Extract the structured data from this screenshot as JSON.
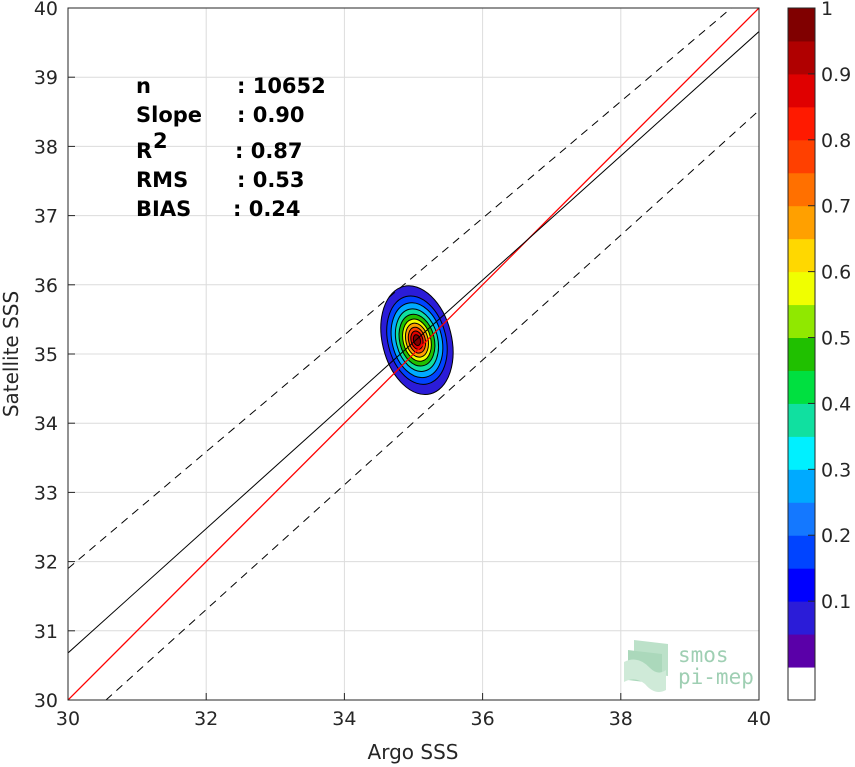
{
  "chart_data": {
    "type": "scatter",
    "subtype": "density-contour",
    "xlabel": "Argo SSS",
    "ylabel": "Satellite SSS",
    "xlim": [
      30,
      40
    ],
    "ylim": [
      30,
      40
    ],
    "xticks": [
      "30",
      "32",
      "34",
      "36",
      "38",
      "40"
    ],
    "yticks": [
      "30",
      "31",
      "32",
      "33",
      "34",
      "35",
      "36",
      "37",
      "38",
      "39",
      "40"
    ],
    "grid": true,
    "stats": [
      {
        "name": "n",
        "value": ": 10652"
      },
      {
        "name": "Slope",
        "value": ": 0.90"
      },
      {
        "name": "R",
        "sup": "2",
        "value": ": 0.87"
      },
      {
        "name": "RMS",
        "value": ": 0.53"
      },
      {
        "name": "BIAS",
        "value": ": 0.24"
      }
    ],
    "lines": {
      "identity": {
        "slope": 1.0,
        "intercept": 0.0,
        "color": "#ff0000"
      },
      "fit": {
        "slope": 0.9,
        "intercept_at_x30": 30.68,
        "value_at_x40": 39.66,
        "color": "#000000"
      },
      "upper_bound": {
        "x0": 30.0,
        "y0": 31.9,
        "x1": 39.6,
        "y1": 40.0,
        "style": "dashed"
      },
      "lower_bound": {
        "x0": 30.55,
        "y0": 30.0,
        "x1": 40.0,
        "y1": 38.52,
        "style": "dashed"
      }
    },
    "density_peak": {
      "x": 35.05,
      "y": 35.2
    },
    "density_contours": [
      {
        "level": 0.05,
        "rx": 0.5,
        "ry": 0.8
      },
      {
        "level": 0.15,
        "rx": 0.42,
        "ry": 0.65
      },
      {
        "level": 0.25,
        "rx": 0.36,
        "ry": 0.55
      },
      {
        "level": 0.35,
        "rx": 0.3,
        "ry": 0.46
      },
      {
        "level": 0.45,
        "rx": 0.25,
        "ry": 0.38
      },
      {
        "level": 0.55,
        "rx": 0.2,
        "ry": 0.31
      },
      {
        "level": 0.65,
        "rx": 0.16,
        "ry": 0.25
      },
      {
        "level": 0.75,
        "rx": 0.12,
        "ry": 0.19
      },
      {
        "level": 0.85,
        "rx": 0.085,
        "ry": 0.135
      },
      {
        "level": 0.95,
        "rx": 0.05,
        "ry": 0.08
      }
    ],
    "colorbar": {
      "ticks": [
        "0.1",
        "0.2",
        "0.3",
        "0.4",
        "0.5",
        "0.6",
        "0.7",
        "0.8",
        "0.9",
        "1"
      ],
      "colors": [
        "#ffffff",
        "#5a00a8",
        "#2b1cd8",
        "#0000ff",
        "#0044ff",
        "#1478ff",
        "#00aaff",
        "#00f0ff",
        "#10e0a0",
        "#00e040",
        "#20c000",
        "#90e800",
        "#f0ff00",
        "#ffd800",
        "#ffa000",
        "#ff7000",
        "#ff4000",
        "#ff1a00",
        "#e00000",
        "#b00000",
        "#800000"
      ]
    }
  },
  "logo": {
    "line1": "smos",
    "line2": "pi-mep"
  }
}
